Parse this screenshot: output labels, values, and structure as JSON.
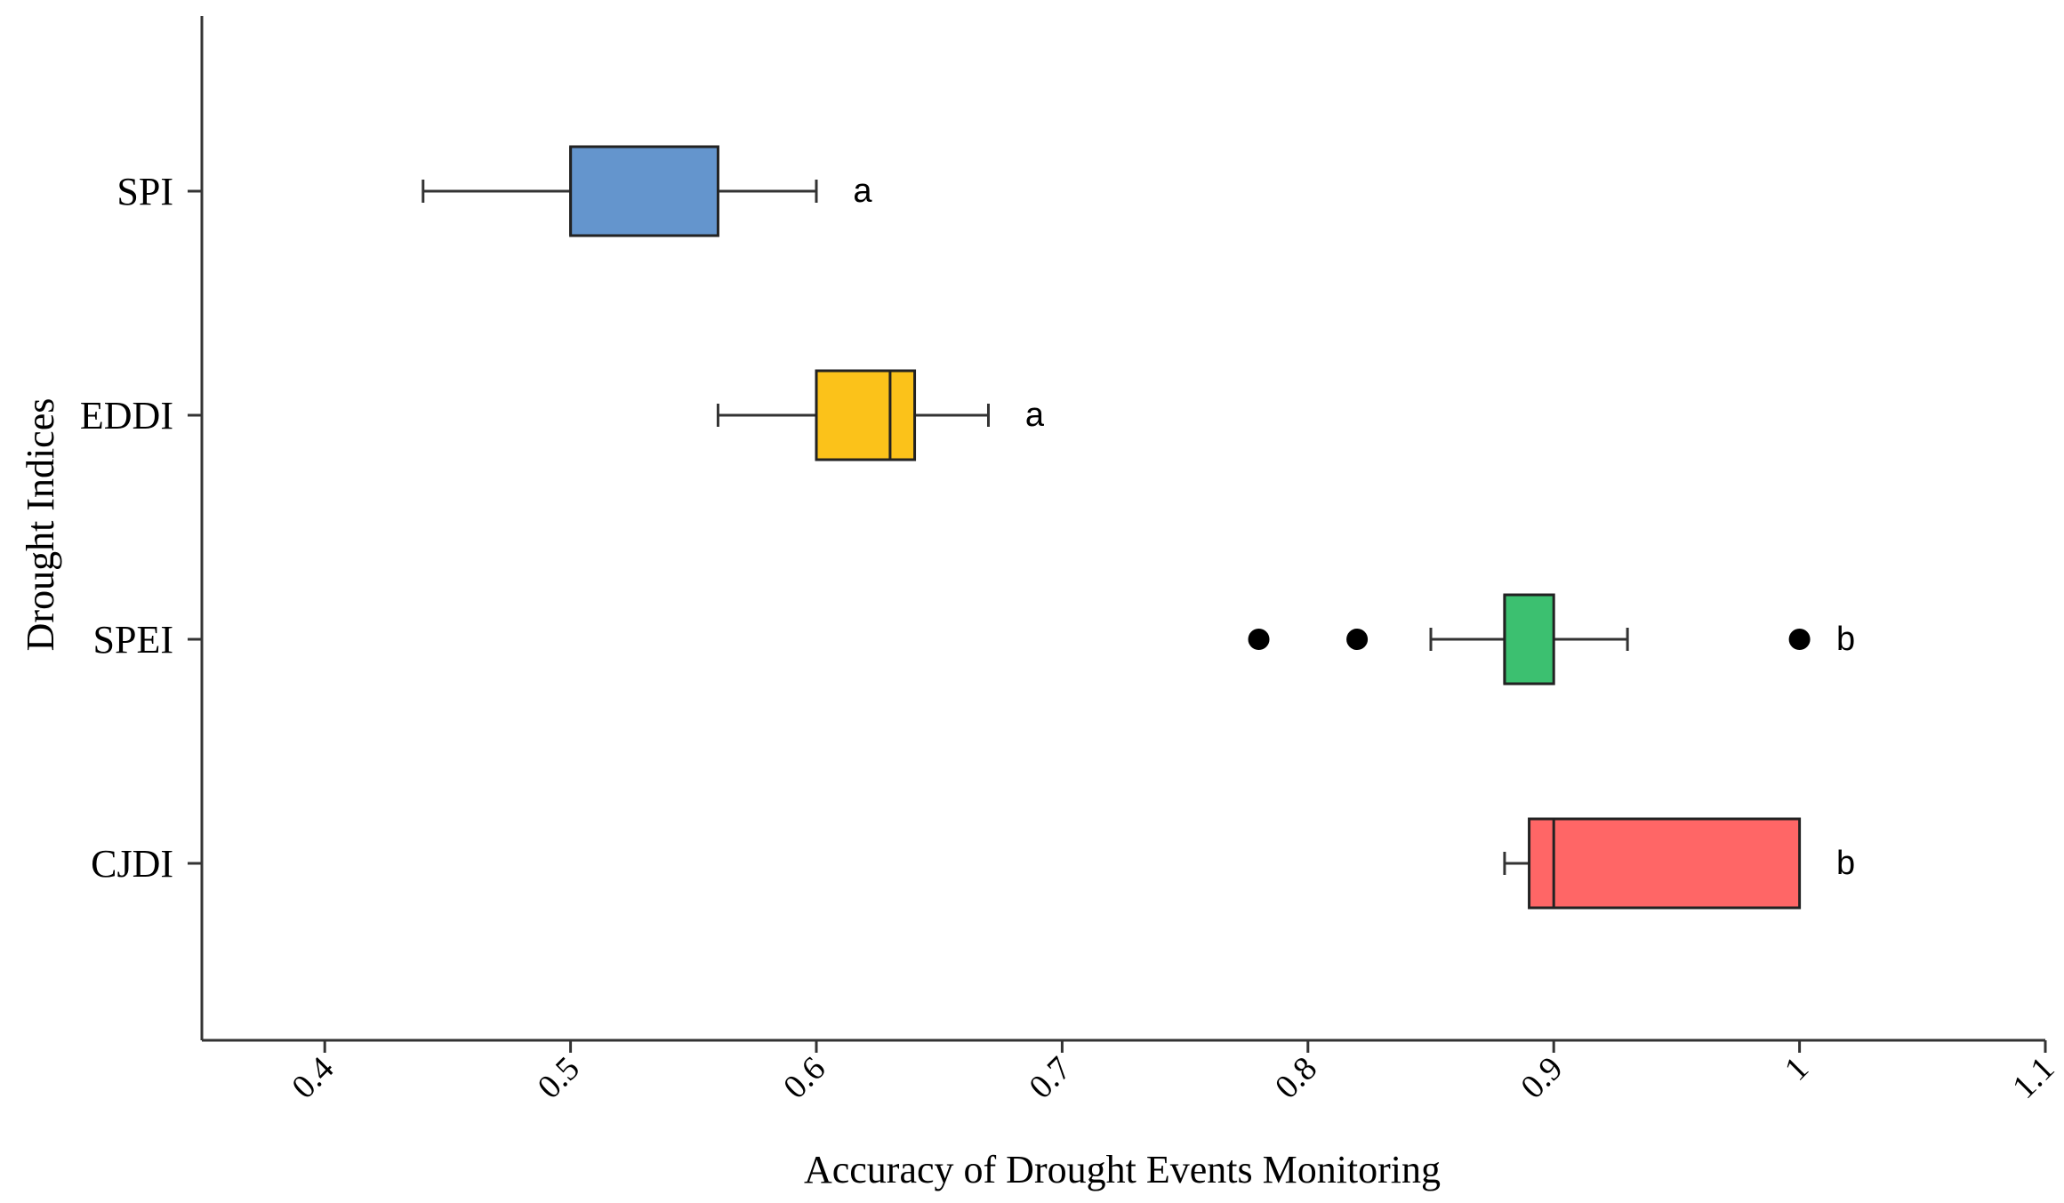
{
  "chart_data": {
    "type": "boxplot",
    "orientation": "horizontal",
    "xlabel": "Accuracy of Drought Events Monitoring",
    "ylabel": "Drought Indices",
    "xlim": [
      0.35,
      1.1
    ],
    "xticks": [
      {
        "value": 0.4,
        "label": "0.4"
      },
      {
        "value": 0.5,
        "label": "0.5"
      },
      {
        "value": 0.6,
        "label": "0.6"
      },
      {
        "value": 0.7,
        "label": "0.7"
      },
      {
        "value": 0.8,
        "label": "0.8"
      },
      {
        "value": 0.9,
        "label": "0.9"
      },
      {
        "value": 1.0,
        "label": "1"
      },
      {
        "value": 1.1,
        "label": "1.1"
      }
    ],
    "categories": [
      "SPI",
      "EDDI",
      "SPEI",
      "CJDI"
    ],
    "series": [
      {
        "name": "SPI",
        "whisker_low": 0.44,
        "q1": 0.5,
        "median": 0.5,
        "q3": 0.56,
        "whisker_high": 0.6,
        "outliers": [],
        "color": "#6495CD",
        "group_label": "a"
      },
      {
        "name": "EDDI",
        "whisker_low": 0.56,
        "q1": 0.6,
        "median": 0.63,
        "q3": 0.64,
        "whisker_high": 0.67,
        "outliers": [],
        "color": "#FBC21A",
        "group_label": "a"
      },
      {
        "name": "SPEI",
        "whisker_low": 0.85,
        "q1": 0.88,
        "median": 0.88,
        "q3": 0.9,
        "whisker_high": 0.93,
        "outliers": [
          0.78,
          0.82,
          1.0
        ],
        "color": "#3CC070",
        "group_label": "b"
      },
      {
        "name": "CJDI",
        "whisker_low": 0.88,
        "q1": 0.89,
        "median": 0.9,
        "q3": 1.0,
        "whisker_high": 1.0,
        "outliers": [],
        "color": "#FF6666",
        "group_label": "b"
      }
    ]
  }
}
